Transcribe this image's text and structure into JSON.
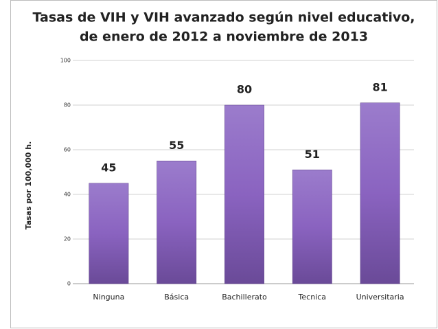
{
  "chart_data": {
    "type": "bar",
    "title": [
      "Tasas de VIH y VIH avanzado según nivel educativo,",
      "de enero de 2012 a noviembre de 2013"
    ],
    "y_label": "Tasas por 100,000 h.",
    "categories": [
      "Ninguna",
      "Básica",
      "Bachillerato",
      "Tecnica",
      "Universitaria"
    ],
    "values": [
      45,
      55,
      80,
      51,
      81
    ],
    "color": "#8a63c0",
    "ylim": [
      0,
      100
    ],
    "yticks": [
      0,
      20,
      40,
      60,
      80,
      100
    ],
    "grid": true
  }
}
